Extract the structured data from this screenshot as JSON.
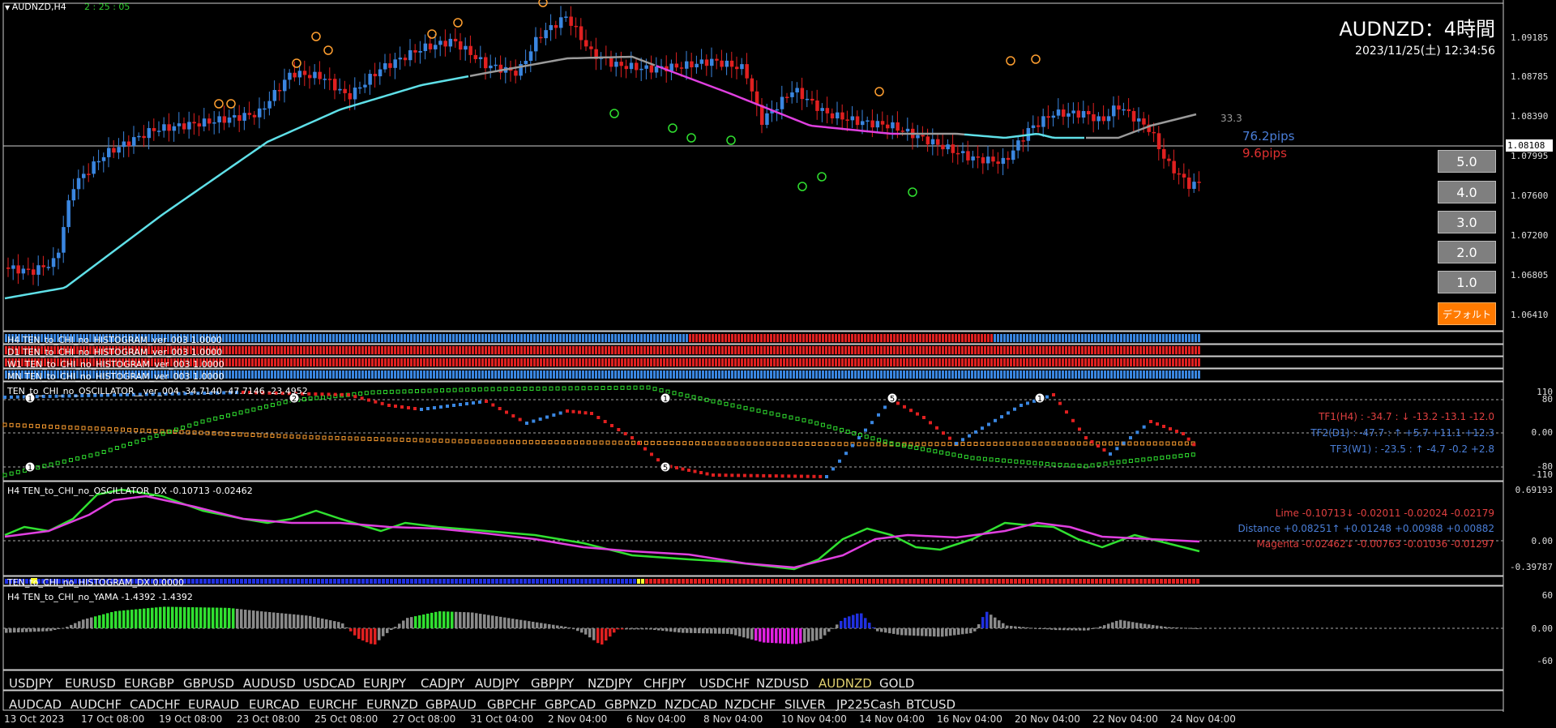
{
  "top_left": {
    "symbol": "AUDNZD,H4",
    "countdown": "2 : 25 : 05"
  },
  "header": {
    "title": "AUDNZD：4時間",
    "datetime": "2023/11/25(土) 12:34:56"
  },
  "price_axis": [
    "1.09185",
    "1.08785",
    "1.08390",
    "1.07995",
    "1.07600",
    "1.07200",
    "1.06805",
    "1.06410"
  ],
  "current_price": "1.08108",
  "annotations": {
    "ma_value": "33.3",
    "pips_up": "76.2pips",
    "pips_down": "9.6pips"
  },
  "buttons": [
    "5.0",
    "4.0",
    "3.0",
    "2.0",
    "1.0"
  ],
  "default_button": "デフォルト",
  "histogram_labels": [
    "H4 TEN_to_CHI_no_HISTOGRAM_ver_003 1.0000",
    "D1 TEN_to_CHI_no_HISTOGRAM_ver_003 1.0000",
    "W1 TEN_to_CHI_no_HISTOGRAM_ver_003 1.0000",
    "MN TEN_to_CHI_no_HISTOGRAM_ver_003 1.0000"
  ],
  "oscillator": {
    "label": "TEN_to_CHI_no_OSCILLATOR__ver_004 -34.7140 -47.7146 -23.4952",
    "scale": [
      "110",
      "80",
      "0.00",
      "-80",
      "-110"
    ],
    "tf1": "TF1(H4) : -34.7 : ↓ -13.2 -13.1 -12.0",
    "tf2": "TF2(D1) : -47.7 : ↑ +5.7 +11.1 +12.3",
    "tf3": "TF3(W1) : -23.5 : ↑ -4.7 -0.2 +2.8",
    "markers": [
      "1",
      "2",
      "1",
      "5",
      "1",
      "1",
      "5"
    ]
  },
  "dx": {
    "label": "H4 TEN_to_CHI_no_OSCILLATOR_DX -0.10713 -0.02462",
    "scale": [
      "0.69193",
      "0.00",
      "-0.39787"
    ],
    "lime": "Lime -0.10713↓ -0.02011 -0.02024 -0.02179",
    "distance": "Distance +0.08251↑ +0.01248 +0.00988 +0.00882",
    "magenta": "Magenta -0.02462↓ -0.00763 -0.01036 -0.01297"
  },
  "dx_hist_label": "TEN_to_CHI_no_HISTOGRAM_DX 0.0000",
  "yama": {
    "label": "H4 TEN_to_CHI_no_YAMA -1.4392 -1.4392",
    "scale": [
      "60",
      "0.00",
      "-60"
    ]
  },
  "symbols_row1": [
    "USDJPY",
    "EURUSD",
    "EURGBP",
    "GBPUSD",
    "AUDUSD",
    "USDCAD",
    "EURJPY",
    "CADJPY",
    "AUDJPY",
    "GBPJPY",
    "NZDJPY",
    "CHFJPY",
    "USDCHF",
    "NZDUSD",
    "AUDNZD",
    "GOLD"
  ],
  "symbols_row2": [
    "AUDCAD",
    "AUDCHF",
    "CADCHF",
    "EURAUD",
    "EURCAD",
    "EURCHF",
    "EURNZD",
    "GBPAUD",
    "GBPCHF",
    "GBPCAD",
    "GBPNZD",
    "NZDCAD",
    "NZDCHF",
    "SILVER",
    "JP225Cash",
    "BTCUSD"
  ],
  "active_symbol": "AUDNZD",
  "time_axis": [
    "13 Oct 2023",
    "17 Oct 08:00",
    "19 Oct 08:00",
    "23 Oct 08:00",
    "25 Oct 08:00",
    "27 Oct 08:00",
    "31 Oct 04:00",
    "2 Nov 04:00",
    "6 Nov 04:00",
    "8 Nov 04:00",
    "10 Nov 04:00",
    "14 Nov 04:00",
    "16 Nov 04:00",
    "20 Nov 04:00",
    "22 Nov 04:00",
    "24 Nov 04:00"
  ],
  "colors": {
    "up": "#3a86e0",
    "down": "#e02020",
    "ma_up": "#5fe0e8",
    "ma_down": "#e040e0",
    "lime": "#30e030",
    "orange": "#ff9f30"
  }
}
